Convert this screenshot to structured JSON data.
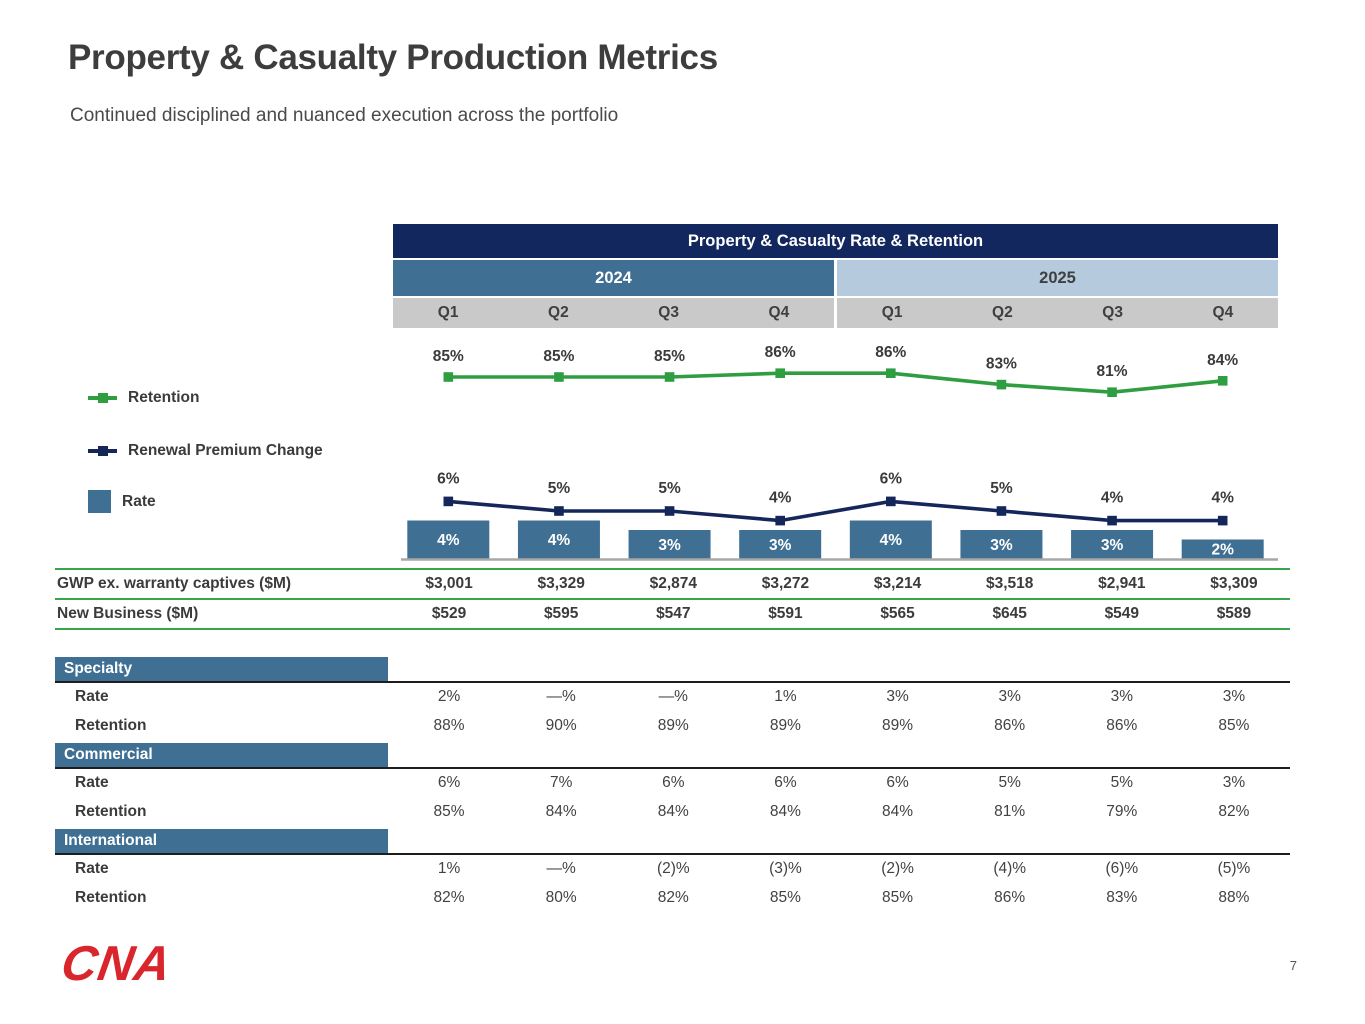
{
  "slide": {
    "title": "Property & Casualty Production Metrics",
    "subtitle": "Continued disciplined and nuanced execution across the portfolio",
    "page_number": "7",
    "logo_text": "CNA"
  },
  "chart_data": {
    "type": "bar",
    "title": "Property & Casualty Rate & Retention",
    "year_groups": [
      {
        "label": "2024",
        "span": 4
      },
      {
        "label": "2025",
        "span": 4
      }
    ],
    "categories": [
      "Q1",
      "Q2",
      "Q3",
      "Q4",
      "Q1",
      "Q2",
      "Q3",
      "Q4"
    ],
    "series": [
      {
        "name": "Retention",
        "type": "line",
        "color": "#2f9e41",
        "values": [
          85,
          85,
          85,
          86,
          86,
          83,
          81,
          84
        ],
        "labels": [
          "85%",
          "85%",
          "85%",
          "86%",
          "86%",
          "83%",
          "81%",
          "84%"
        ]
      },
      {
        "name": "Renewal Premium Change",
        "type": "line",
        "color": "#14265a",
        "values": [
          6,
          5,
          5,
          4,
          6,
          5,
          4,
          4
        ],
        "labels": [
          "6%",
          "5%",
          "5%",
          "4%",
          "6%",
          "5%",
          "4%",
          "4%"
        ]
      },
      {
        "name": "Rate",
        "type": "bar",
        "color": "#3f6f93",
        "values": [
          4,
          4,
          3,
          3,
          4,
          3,
          3,
          2
        ],
        "labels": [
          "4%",
          "4%",
          "3%",
          "3%",
          "4%",
          "3%",
          "3%",
          "2%"
        ]
      }
    ],
    "legend_position": "left",
    "grid": false
  },
  "summary_table": {
    "rows": [
      {
        "label": "GWP ex. warranty captives ($M)",
        "values": [
          "$3,001",
          "$3,329",
          "$2,874",
          "$3,272",
          "$3,214",
          "$3,518",
          "$2,941",
          "$3,309"
        ]
      },
      {
        "label": "New Business ($M)",
        "values": [
          "$529",
          "$595",
          "$547",
          "$591",
          "$565",
          "$645",
          "$549",
          "$589"
        ]
      }
    ]
  },
  "segments": [
    {
      "name": "Specialty",
      "rows": [
        {
          "label": "Rate",
          "values": [
            "2%",
            "—%",
            "—%",
            "1%",
            "3%",
            "3%",
            "3%",
            "3%"
          ]
        },
        {
          "label": "Retention",
          "values": [
            "88%",
            "90%",
            "89%",
            "89%",
            "89%",
            "86%",
            "86%",
            "85%"
          ]
        }
      ]
    },
    {
      "name": "Commercial",
      "rows": [
        {
          "label": "Rate",
          "values": [
            "6%",
            "7%",
            "6%",
            "6%",
            "6%",
            "5%",
            "5%",
            "3%"
          ]
        },
        {
          "label": "Retention",
          "values": [
            "85%",
            "84%",
            "84%",
            "84%",
            "84%",
            "81%",
            "79%",
            "82%"
          ]
        }
      ]
    },
    {
      "name": "International",
      "rows": [
        {
          "label": "Rate",
          "values": [
            "1%",
            "—%",
            "(2)%",
            "(3)%",
            "(2)%",
            "(4)%",
            "(6)%",
            "(5)%"
          ]
        },
        {
          "label": "Retention",
          "values": [
            "82%",
            "80%",
            "82%",
            "85%",
            "85%",
            "86%",
            "83%",
            "88%"
          ]
        }
      ]
    }
  ],
  "colors": {
    "navy": "#12275e",
    "steel_blue": "#3f6f93",
    "light_blue": "#b5cbdd",
    "gray_band": "#c9c9c9",
    "green_line": "#2f9e41",
    "green_border": "#3aa44a",
    "logo_red": "#d9262c"
  }
}
